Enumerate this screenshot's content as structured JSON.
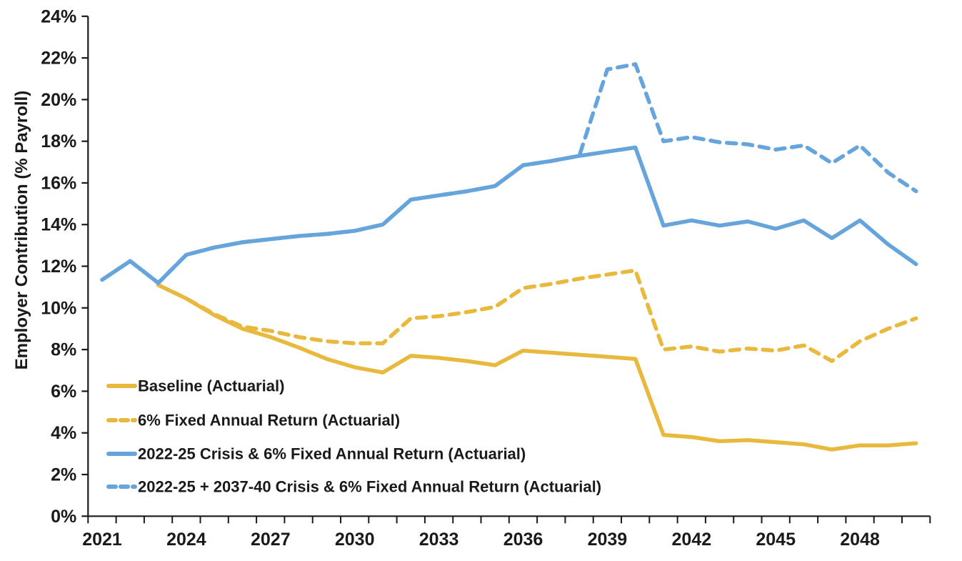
{
  "chart_data": {
    "type": "line",
    "title": "",
    "xlabel": "",
    "ylabel": "Employer Contribution (% Payroll)",
    "x_range": [
      2021,
      2050
    ],
    "x_tick_interval": 1,
    "x_label_years": [
      2021,
      2024,
      2027,
      2030,
      2033,
      2036,
      2039,
      2042,
      2045,
      2048
    ],
    "x_tick_labels": [
      "2021",
      "2024",
      "2027",
      "2030",
      "2033",
      "2036",
      "2039",
      "2042",
      "2045",
      "2048"
    ],
    "ylim": [
      0,
      24
    ],
    "y_tick_step": 2,
    "y_tick_labels": [
      "0%",
      "2%",
      "4%",
      "6%",
      "8%",
      "10%",
      "12%",
      "14%",
      "16%",
      "18%",
      "20%",
      "22%",
      "24%"
    ],
    "grid": false,
    "legend_position": "inside-lower-left",
    "axis_color": "#1a1a1a",
    "series": [
      {
        "name": "Baseline (Actuarial)",
        "style": "solid",
        "color": "#E8B93D",
        "x_start": 2023,
        "values": [
          11.1,
          10.45,
          9.65,
          9.0,
          8.6,
          8.1,
          7.55,
          7.15,
          6.9,
          7.7,
          7.6,
          7.45,
          7.25,
          7.95,
          7.85,
          7.75,
          7.65,
          7.55,
          3.9,
          3.8,
          3.6,
          3.65,
          3.55,
          3.45,
          3.2,
          3.4,
          3.4,
          3.5
        ]
      },
      {
        "name": "6% Fixed Annual Return (Actuarial)",
        "style": "dashed",
        "color": "#E8B93D",
        "x_start": 2023,
        "values": [
          11.1,
          10.45,
          9.7,
          9.1,
          8.9,
          8.6,
          8.4,
          8.3,
          8.3,
          9.5,
          9.6,
          9.8,
          10.05,
          10.95,
          11.15,
          11.4,
          11.6,
          11.8,
          8.0,
          8.15,
          7.9,
          8.05,
          7.95,
          8.2,
          7.45,
          8.4,
          9.0,
          9.5
        ]
      },
      {
        "name": "2022-25 Crisis & 6% Fixed Annual Return (Actuarial)",
        "style": "solid",
        "color": "#66A4DC",
        "x_start": 2021,
        "values": [
          11.35,
          12.25,
          11.2,
          12.55,
          12.9,
          13.15,
          13.3,
          13.45,
          13.55,
          13.7,
          14.0,
          15.2,
          15.4,
          15.6,
          15.85,
          16.85,
          17.05,
          17.3,
          17.5,
          17.7,
          13.95,
          14.2,
          13.95,
          14.15,
          13.8,
          14.2,
          13.35,
          14.2,
          13.05,
          12.1
        ]
      },
      {
        "name": "2022-25 + 2037-40 Crisis & 6% Fixed Annual Return (Actuarial)",
        "style": "dashed",
        "color": "#66A4DC",
        "x_start": 2021,
        "values": [
          11.35,
          12.25,
          11.2,
          12.55,
          12.9,
          13.15,
          13.3,
          13.45,
          13.55,
          13.7,
          14.0,
          15.2,
          15.4,
          15.6,
          15.85,
          16.85,
          17.05,
          17.3,
          21.45,
          21.7,
          18.0,
          18.2,
          17.95,
          17.85,
          17.6,
          17.8,
          16.95,
          17.8,
          16.5,
          15.6
        ]
      }
    ]
  }
}
